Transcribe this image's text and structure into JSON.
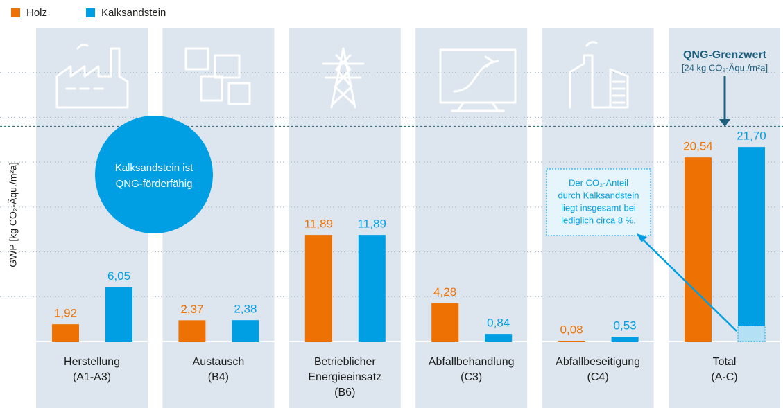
{
  "chart_data": {
    "type": "bar",
    "y_label": "GWP [kg CO₂-Äqu./m²a]",
    "categories": [
      [
        "Herstellung",
        "(A1-A3)"
      ],
      [
        "Austausch",
        "(B4)"
      ],
      [
        "Betrieblicher",
        "Energieeinsatz",
        "(B6)"
      ],
      [
        "Abfallbehandlung",
        "(C3)"
      ],
      [
        "Abfallbeseitigung",
        "(C4)"
      ],
      [
        "Total",
        "(A-C)"
      ]
    ],
    "series": [
      {
        "name": "Holz",
        "color": "#ee7203",
        "values": [
          1.92,
          2.37,
          11.89,
          4.28,
          0.08,
          20.54
        ],
        "value_labels": [
          "1,92",
          "2,37",
          "11,89",
          "4,28",
          "0,08",
          "20,54"
        ]
      },
      {
        "name": "Kalksandstein",
        "color": "#009fe3",
        "values": [
          6.05,
          2.38,
          11.89,
          0.84,
          0.53,
          21.7
        ],
        "value_labels": [
          "6,05",
          "2,38",
          "11,89",
          "0,84",
          "0,53",
          "21,70"
        ]
      }
    ],
    "ylim": [
      0,
      35
    ],
    "gridlines": [
      5,
      10,
      15,
      20,
      25,
      30
    ],
    "threshold": {
      "value": 24,
      "title": "QNG-Grenzwert",
      "label": "[24 kg CO₂-Äqu./m²a]"
    },
    "highlight": {
      "value": 1.74,
      "color": "#b3e0f5"
    },
    "circle_note": [
      "Kalksandstein ist",
      "QNG-förderfähig"
    ],
    "box_note": [
      "Der CO₂-Anteil",
      "durch Kalksandstein",
      "liegt insgesamt bei",
      "lediglich circa 8 %."
    ]
  }
}
